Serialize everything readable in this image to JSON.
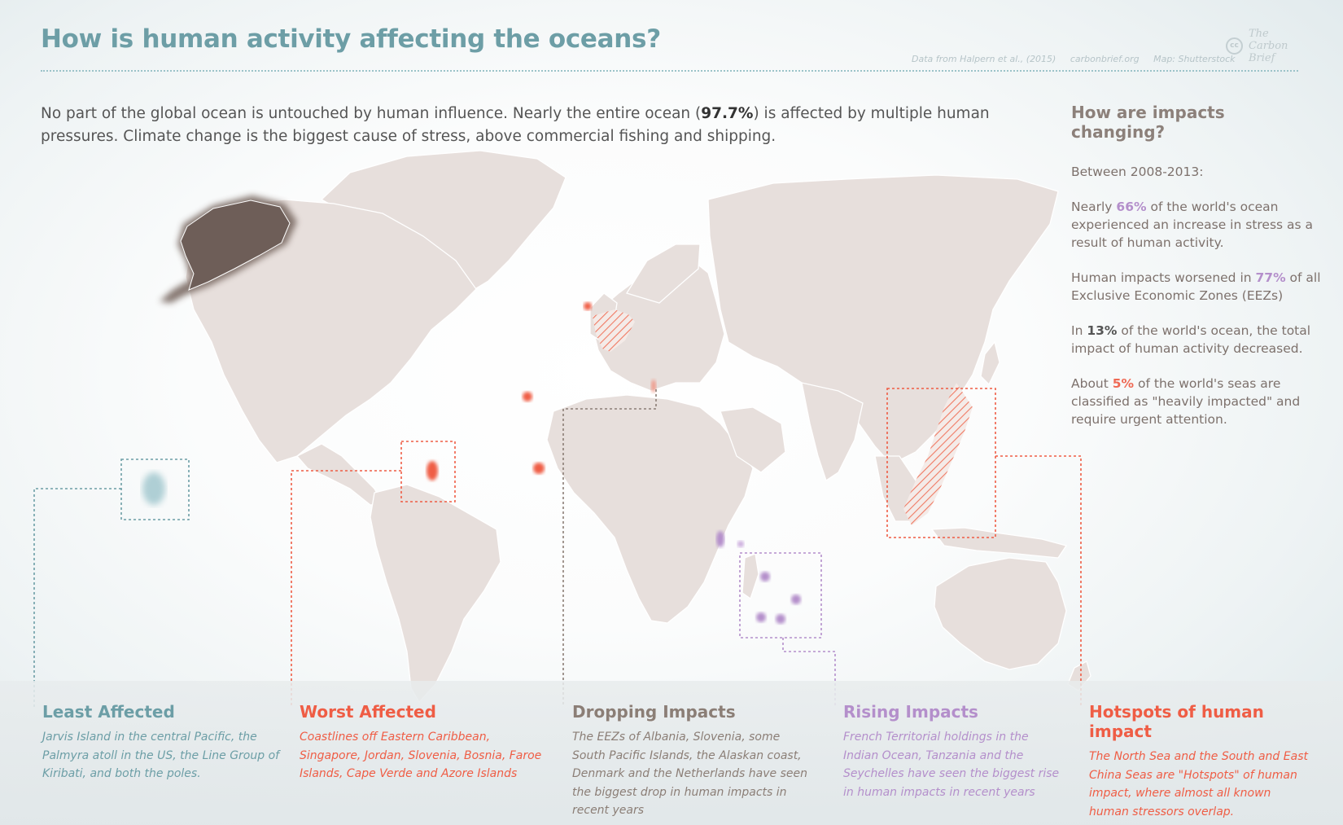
{
  "title": "How is human activity affecting the oceans?",
  "credits": {
    "data": "Data from Halpern et al., (2015)",
    "site": "carbonbrief.org",
    "map": "Map: Shutterstock"
  },
  "logo": {
    "cc": "cc",
    "line1": "The",
    "line2": "Carbon",
    "line3": "Brief"
  },
  "intro": {
    "part1": "No part of the global ocean is untouched by human influence. Nearly the entire ocean (",
    "highlight": "97.7%",
    "part2": ") is affected by multiple human pressures.  Climate change is the biggest cause of stress, above commercial fishing and shipping."
  },
  "sidebar": {
    "heading": "How are impacts changing?",
    "period": "Between 2008-2013:",
    "items": [
      {
        "pre": "Nearly ",
        "value": "66%",
        "post": " of the world's ocean experienced an increase in stress as a result of human activity."
      },
      {
        "pre": "Human impacts worsened in ",
        "value": "77%",
        "post": " of all Exclusive Economic Zones (EEZs)"
      },
      {
        "pre": "In ",
        "value": "13%",
        "post": " of the world's ocean, the total impact of human activity decreased."
      },
      {
        "pre": "About ",
        "value": "5%",
        "post": " of the world's seas are classified as \"heavily impacted\" and require urgent attention."
      }
    ]
  },
  "legend": [
    {
      "title": "Least Affected",
      "text": "Jarvis Island in the central Pacific, the Palmyra atoll in the US, the Line Group of Kiribati, and both the poles.",
      "color": "#6c9ea6"
    },
    {
      "title": "Worst Affected",
      "text": "Coastlines off Eastern Caribbean, Singapore, Jordan, Slovenia, Bosnia, Faroe Islands, Cape Verde and Azore Islands",
      "color": "#ef5d45"
    },
    {
      "title": "Dropping Impacts",
      "text": "The EEZs of Albania, Slovenia, some South Pacific Islands, the Alaskan coast, Denmark and the Netherlands have seen the biggest drop in human impacts in recent years",
      "color": "#8b7e76"
    },
    {
      "title": "Rising Impacts",
      "text": "French Territorial holdings in the Indian Ocean, Tanzania and the Seychelles have seen the biggest rise in human impacts in recent years",
      "color": "#b48fcb"
    },
    {
      "title": "Hotspots of human impact",
      "text": "The North Sea and the South and East China Seas are \"Hotspots\" of human impact, where almost all known human stressors overlap.",
      "color": "#ef5d45"
    }
  ],
  "colors": {
    "land": "#e7dfdc",
    "teal": "#6c9ea6",
    "red": "#ef5d45",
    "grey": "#8b7e76",
    "purple": "#b48fcb"
  }
}
